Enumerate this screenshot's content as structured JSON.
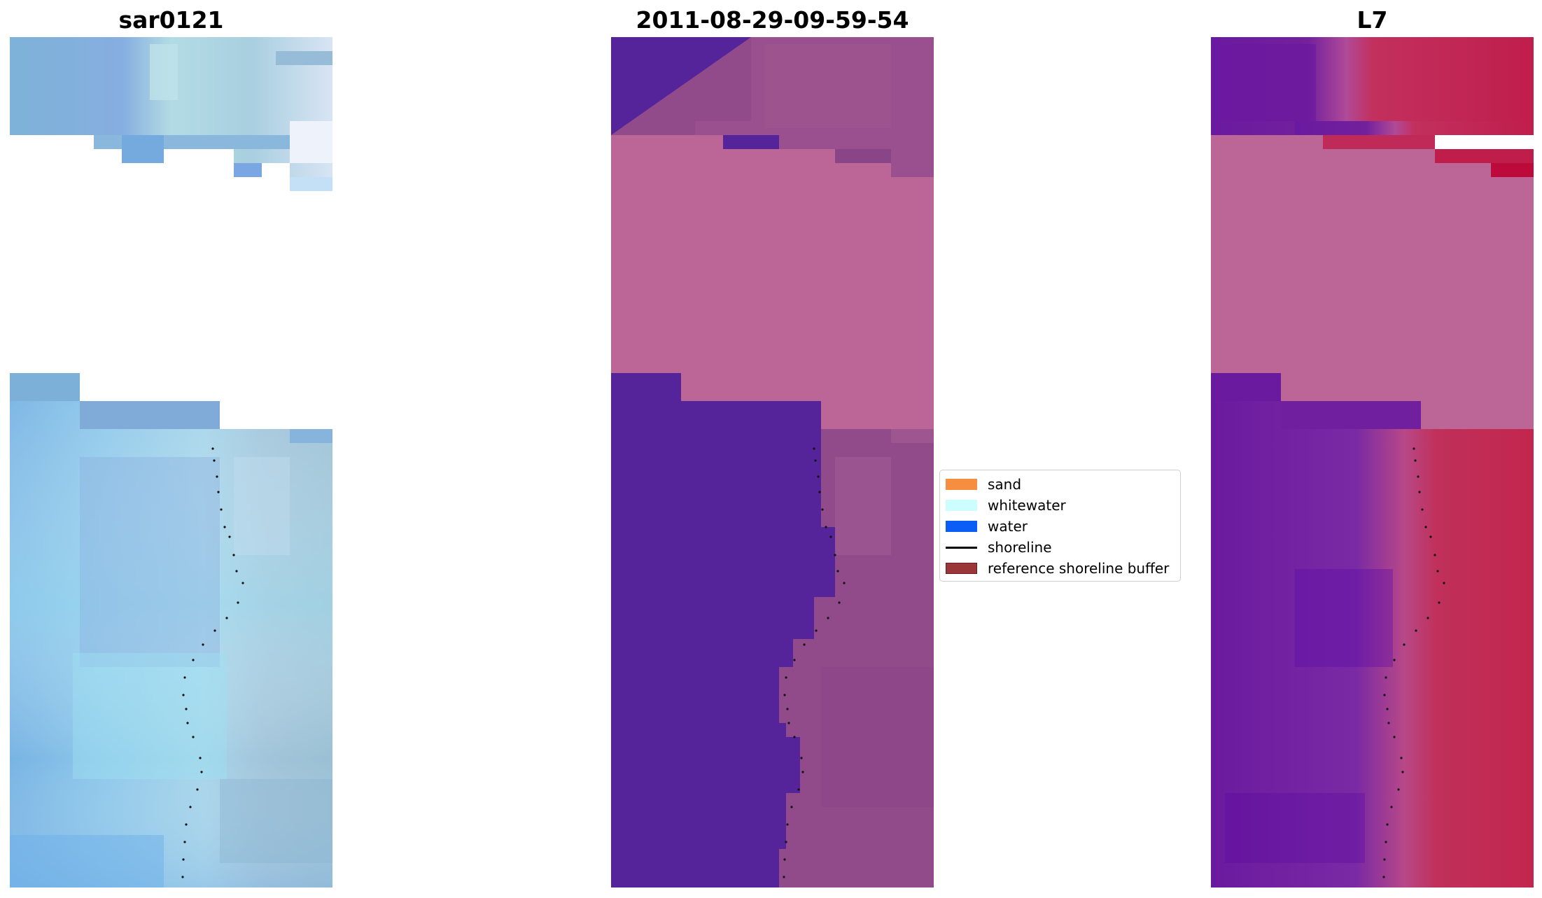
{
  "panels": [
    {
      "id": "left",
      "title": "sar0121"
    },
    {
      "id": "middle",
      "title": "2011-08-29-09-59-54"
    },
    {
      "id": "right",
      "title": "L7"
    }
  ],
  "legend": {
    "items": [
      {
        "label": "sand",
        "color": "#f58e3f",
        "kind": "patch"
      },
      {
        "label": "whitewater",
        "color": "#cdfefe",
        "kind": "patch"
      },
      {
        "label": "water",
        "color": "#0a5ef5",
        "kind": "patch"
      },
      {
        "label": "shoreline",
        "color": "#000000",
        "kind": "line"
      },
      {
        "label": "reference shoreline buffer",
        "color": "#9a3538",
        "kind": "patch"
      }
    ]
  },
  "colors": {
    "left_water": "#7fb3dd",
    "left_light": "#b8d8e6",
    "middle_water": "#55239a",
    "middle_buffer": "#bc6698",
    "middle_land": "#924b8a",
    "right_water": "#6e1c9c",
    "right_buffer": "#bc6698",
    "right_land": "#c02453",
    "shoreline_dots": "#111111"
  }
}
